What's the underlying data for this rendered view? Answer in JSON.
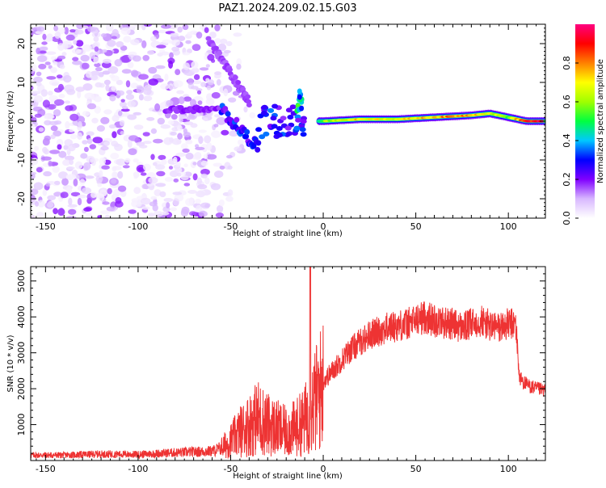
{
  "title": "PAZ1.2024.209.02.15.G03",
  "chart_data": [
    {
      "type": "heatmap",
      "xlabel": "Height of straight line (km)",
      "ylabel": "Frequency (Hz)",
      "xlim": [
        -158,
        120
      ],
      "ylim": [
        -25,
        25
      ],
      "xticks": [
        -150,
        -100,
        -50,
        0,
        50,
        100
      ],
      "yticks": [
        -20,
        -10,
        0,
        10,
        20
      ],
      "colorbar": {
        "label": "Normalized spectral amplitude",
        "range": [
          0,
          1
        ],
        "ticks": [
          0.0,
          0.2,
          0.4,
          0.6,
          0.8
        ],
        "colormap": [
          "#ffffff",
          "#d8b8ff",
          "#8000ff",
          "#0000ff",
          "#00c8ff",
          "#00ff40",
          "#a0ff00",
          "#ffff00",
          "#ff8000",
          "#ff0000",
          "#ff0080"
        ]
      },
      "ridge": [
        {
          "x": 0,
          "freq": 0.0,
          "amp": 0.6
        },
        {
          "x": 20,
          "freq": 0.5,
          "amp": 0.75
        },
        {
          "x": 40,
          "freq": 0.5,
          "amp": 0.7
        },
        {
          "x": 60,
          "freq": 1.0,
          "amp": 0.8
        },
        {
          "x": 80,
          "freq": 1.5,
          "amp": 0.85
        },
        {
          "x": 90,
          "freq": 2.0,
          "amp": 0.7
        },
        {
          "x": 100,
          "freq": 1.0,
          "amp": 0.6
        },
        {
          "x": 110,
          "freq": 0.0,
          "amp": 0.95
        },
        {
          "x": 120,
          "freq": 0.0,
          "amp": 0.95
        }
      ]
    },
    {
      "type": "line",
      "xlabel": "Height of straight line (km)",
      "ylabel": "SNR (10 * v/v)",
      "xlim": [
        -158,
        120
      ],
      "ylim": [
        0,
        5400
      ],
      "xticks": [
        -150,
        -100,
        -50,
        0,
        50,
        100
      ],
      "yticks": [
        1000,
        2000,
        3000,
        4000,
        5000
      ],
      "color": "#ee3333",
      "series": [
        {
          "x": [
            -158,
            -140,
            -120,
            -100,
            -80,
            -60,
            -55,
            -50,
            -45,
            -40,
            -35,
            -30,
            -25,
            -20,
            -15,
            -10,
            -8,
            -6,
            -4,
            -2,
            0,
            5,
            10,
            15,
            20,
            25,
            30,
            35,
            40,
            45,
            50,
            55,
            60,
            65,
            70,
            75,
            80,
            85,
            90,
            95,
            100,
            104,
            106,
            110,
            115,
            120
          ],
          "y": [
            150,
            150,
            180,
            170,
            220,
            260,
            350,
            550,
            800,
            1000,
            1200,
            1000,
            900,
            800,
            900,
            1100,
            1400,
            1500,
            1700,
            1900,
            2200,
            2500,
            2800,
            3100,
            3300,
            3500,
            3600,
            3700,
            3750,
            3800,
            3900,
            4000,
            3900,
            3850,
            3800,
            3700,
            3800,
            3900,
            3750,
            3700,
            3800,
            3800,
            2300,
            2100,
            2000,
            1950
          ]
        }
      ]
    }
  ]
}
